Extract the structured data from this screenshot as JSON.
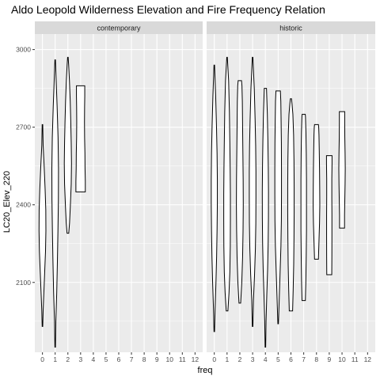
{
  "chart_data": {
    "type": "violin",
    "title": "Aldo Leopold Wilderness Elevation and Fire Frequency Relation",
    "xlabel": "freq",
    "ylabel": "LC20_Elev_220",
    "x_ticks": [
      "0",
      "1",
      "2",
      "3",
      "4",
      "5",
      "6",
      "7",
      "8",
      "9",
      "10",
      "11",
      "12"
    ],
    "y_ticks": [
      2100,
      2400,
      2700,
      3000
    ],
    "ylim": [
      1830,
      3060
    ],
    "xlim": [
      -0.6,
      12.6
    ],
    "grid": true,
    "colors": {
      "panel_bg": "#ebebeb",
      "strip_bg": "#d9d9d9",
      "grid": "#ffffff",
      "outline": "#000000"
    },
    "facets": [
      {
        "name": "contemporary",
        "violins": [
          {
            "freq": 0,
            "min": 1930,
            "max": 2710,
            "profile": [
              [
                1930,
                0.05
              ],
              [
                1990,
                0.12
              ],
              [
                2060,
                0.25
              ],
              [
                2140,
                0.4
              ],
              [
                2220,
                0.55
              ],
              [
                2300,
                0.62
              ],
              [
                2380,
                0.6
              ],
              [
                2460,
                0.48
              ],
              [
                2550,
                0.3
              ],
              [
                2630,
                0.12
              ],
              [
                2710,
                0.05
              ]
            ]
          },
          {
            "freq": 1,
            "min": 1850,
            "max": 2960,
            "profile": [
              [
                1850,
                0.05
              ],
              [
                1950,
                0.12
              ],
              [
                2060,
                0.28
              ],
              [
                2180,
                0.4
              ],
              [
                2300,
                0.5
              ],
              [
                2420,
                0.58
              ],
              [
                2540,
                0.6
              ],
              [
                2660,
                0.52
              ],
              [
                2780,
                0.35
              ],
              [
                2880,
                0.18
              ],
              [
                2960,
                0.05
              ]
            ]
          },
          {
            "freq": 2,
            "min": 2290,
            "max": 2970,
            "profile": [
              [
                2290,
                0.15
              ],
              [
                2330,
                0.3
              ],
              [
                2400,
                0.45
              ],
              [
                2480,
                0.6
              ],
              [
                2560,
                0.65
              ],
              [
                2640,
                0.6
              ],
              [
                2720,
                0.52
              ],
              [
                2800,
                0.42
              ],
              [
                2880,
                0.28
              ],
              [
                2940,
                0.14
              ],
              [
                2970,
                0.05
              ]
            ]
          },
          {
            "freq": 3,
            "min": 2450,
            "max": 2860,
            "profile": [
              [
                2450,
                0.85
              ],
              [
                2490,
                0.85
              ],
              [
                2540,
                0.8
              ],
              [
                2600,
                0.78
              ],
              [
                2660,
                0.72
              ],
              [
                2720,
                0.7
              ],
              [
                2780,
                0.72
              ],
              [
                2820,
                0.75
              ],
              [
                2860,
                0.75
              ]
            ]
          }
        ]
      },
      {
        "name": "historic",
        "violins": [
          {
            "freq": 0,
            "min": 1910,
            "max": 2940,
            "profile": [
              [
                1910,
                0.05
              ],
              [
                2000,
                0.15
              ],
              [
                2100,
                0.3
              ],
              [
                2200,
                0.42
              ],
              [
                2300,
                0.5
              ],
              [
                2400,
                0.55
              ],
              [
                2500,
                0.55
              ],
              [
                2600,
                0.5
              ],
              [
                2700,
                0.4
              ],
              [
                2820,
                0.25
              ],
              [
                2940,
                0.05
              ]
            ]
          },
          {
            "freq": 1,
            "min": 1990,
            "max": 2970,
            "profile": [
              [
                1990,
                0.15
              ],
              [
                2060,
                0.35
              ],
              [
                2140,
                0.5
              ],
              [
                2240,
                0.58
              ],
              [
                2340,
                0.6
              ],
              [
                2440,
                0.6
              ],
              [
                2540,
                0.56
              ],
              [
                2640,
                0.5
              ],
              [
                2760,
                0.42
              ],
              [
                2880,
                0.28
              ],
              [
                2970,
                0.05
              ]
            ]
          },
          {
            "freq": 2,
            "min": 2020,
            "max": 2880,
            "profile": [
              [
                2020,
                0.15
              ],
              [
                2100,
                0.35
              ],
              [
                2200,
                0.5
              ],
              [
                2300,
                0.58
              ],
              [
                2400,
                0.62
              ],
              [
                2500,
                0.6
              ],
              [
                2600,
                0.55
              ],
              [
                2700,
                0.5
              ],
              [
                2800,
                0.45
              ],
              [
                2860,
                0.38
              ],
              [
                2880,
                0.3
              ]
            ]
          },
          {
            "freq": 3,
            "min": 1930,
            "max": 2970,
            "profile": [
              [
                1930,
                0.05
              ],
              [
                2030,
                0.15
              ],
              [
                2130,
                0.35
              ],
              [
                2230,
                0.5
              ],
              [
                2330,
                0.58
              ],
              [
                2430,
                0.6
              ],
              [
                2530,
                0.6
              ],
              [
                2630,
                0.55
              ],
              [
                2730,
                0.45
              ],
              [
                2850,
                0.3
              ],
              [
                2970,
                0.05
              ]
            ]
          },
          {
            "freq": 4,
            "min": 1850,
            "max": 2850,
            "profile": [
              [
                1850,
                0.05
              ],
              [
                1950,
                0.12
              ],
              [
                2050,
                0.25
              ],
              [
                2150,
                0.4
              ],
              [
                2250,
                0.5
              ],
              [
                2350,
                0.55
              ],
              [
                2450,
                0.56
              ],
              [
                2550,
                0.52
              ],
              [
                2650,
                0.45
              ],
              [
                2750,
                0.35
              ],
              [
                2850,
                0.2
              ]
            ]
          },
          {
            "freq": 5,
            "min": 1940,
            "max": 2840,
            "profile": [
              [
                1940,
                0.05
              ],
              [
                2040,
                0.2
              ],
              [
                2140,
                0.35
              ],
              [
                2240,
                0.5
              ],
              [
                2340,
                0.58
              ],
              [
                2440,
                0.6
              ],
              [
                2540,
                0.6
              ],
              [
                2640,
                0.58
              ],
              [
                2740,
                0.52
              ],
              [
                2800,
                0.48
              ],
              [
                2840,
                0.4
              ]
            ]
          },
          {
            "freq": 6,
            "min": 1990,
            "max": 2810,
            "profile": [
              [
                1990,
                0.3
              ],
              [
                2070,
                0.4
              ],
              [
                2170,
                0.5
              ],
              [
                2270,
                0.55
              ],
              [
                2370,
                0.58
              ],
              [
                2470,
                0.58
              ],
              [
                2570,
                0.55
              ],
              [
                2670,
                0.48
              ],
              [
                2750,
                0.35
              ],
              [
                2790,
                0.2
              ],
              [
                2810,
                0.1
              ]
            ]
          },
          {
            "freq": 7,
            "min": 2030,
            "max": 2750,
            "profile": [
              [
                2030,
                0.3
              ],
              [
                2100,
                0.38
              ],
              [
                2200,
                0.45
              ],
              [
                2300,
                0.5
              ],
              [
                2400,
                0.5
              ],
              [
                2500,
                0.5
              ],
              [
                2600,
                0.46
              ],
              [
                2680,
                0.4
              ],
              [
                2740,
                0.32
              ],
              [
                2750,
                0.28
              ]
            ]
          },
          {
            "freq": 8,
            "min": 2190,
            "max": 2710,
            "profile": [
              [
                2190,
                0.35
              ],
              [
                2260,
                0.45
              ],
              [
                2330,
                0.55
              ],
              [
                2400,
                0.6
              ],
              [
                2470,
                0.58
              ],
              [
                2540,
                0.55
              ],
              [
                2610,
                0.5
              ],
              [
                2670,
                0.45
              ],
              [
                2700,
                0.4
              ],
              [
                2710,
                0.35
              ]
            ]
          },
          {
            "freq": 9,
            "min": 2130,
            "max": 2590,
            "profile": [
              [
                2130,
                0.45
              ],
              [
                2200,
                0.47
              ],
              [
                2280,
                0.48
              ],
              [
                2360,
                0.48
              ],
              [
                2430,
                0.46
              ],
              [
                2500,
                0.46
              ],
              [
                2560,
                0.5
              ],
              [
                2590,
                0.5
              ]
            ]
          },
          {
            "freq": 10,
            "min": 2310,
            "max": 2760,
            "profile": [
              [
                2310,
                0.45
              ],
              [
                2360,
                0.45
              ],
              [
                2420,
                0.5
              ],
              [
                2480,
                0.55
              ],
              [
                2540,
                0.58
              ],
              [
                2600,
                0.55
              ],
              [
                2660,
                0.5
              ],
              [
                2720,
                0.48
              ],
              [
                2760,
                0.48
              ]
            ]
          }
        ]
      }
    ]
  }
}
